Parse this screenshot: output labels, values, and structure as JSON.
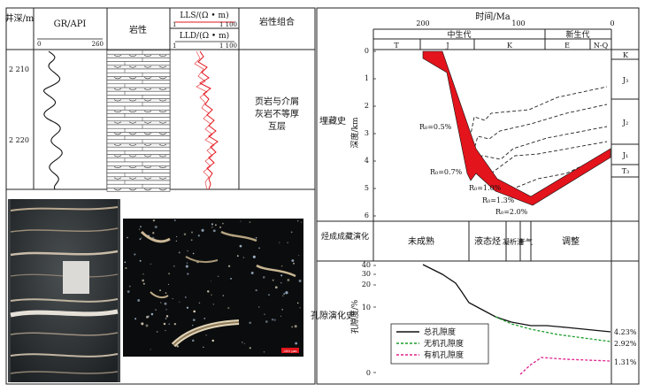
{
  "log_panel": {
    "headers": {
      "depth": "井深/m",
      "gr": "GR/API",
      "gr_min": "0",
      "gr_max": "260",
      "lithology": "岩性",
      "lls": "LLS/(Ω • m)",
      "lls_min": "1",
      "lls_max": "1 100",
      "lld": "LLD/(Ω • m)",
      "lld_min": "1",
      "lld_max": "1 100",
      "combination": "岩性组合"
    },
    "depth_ticks": [
      "2 210",
      "2 220"
    ],
    "combination_text": [
      "页岩与介屑",
      "灰岩不等厚",
      "互层"
    ]
  },
  "micro_photo": {
    "scale_label": "200 μm"
  },
  "history": {
    "time_axis_label": "时间/Ma",
    "time_ticks": [
      "200",
      "100",
      "0"
    ],
    "eras": [
      "中生代",
      "新生代"
    ],
    "periods": [
      "T",
      "J",
      "K",
      "E",
      "N-Q"
    ],
    "burial_label": "埋藏史",
    "depth_axis_label": "深度/km",
    "depth_ticks": [
      "0",
      "1",
      "2",
      "3",
      "4",
      "5",
      "6"
    ],
    "ro_labels": [
      "R₀=0.5%",
      "R₀=0.7%",
      "R₀=1.0%",
      "R₀=1.3%",
      "R₀=2.0%"
    ],
    "strata": [
      "K",
      "J₃",
      "J₂",
      "J₁",
      "T₃"
    ],
    "evolution_label": "烃成成藏演化",
    "stages": [
      "未成熟",
      "液态烃",
      "凝析油",
      "干气",
      "调整"
    ],
    "porosity_label": "孔隙演化史",
    "porosity_axis_label": "孔隙度/%",
    "porosity_ticks": [
      "40",
      "30",
      "20",
      "10",
      "0"
    ],
    "legend": [
      {
        "name": "总孔隙度",
        "color": "#111111"
      },
      {
        "name": "无机孔隙度",
        "color": "#1a9e2a"
      },
      {
        "name": "有机孔隙度",
        "color": "#e0208c"
      }
    ],
    "end_values": [
      "4.23%",
      "2.92%",
      "1.31%"
    ]
  },
  "colors": {
    "accent_red": "#e3141c",
    "gr_curve": "#111111",
    "resistivity_curve": "#e3141c"
  }
}
